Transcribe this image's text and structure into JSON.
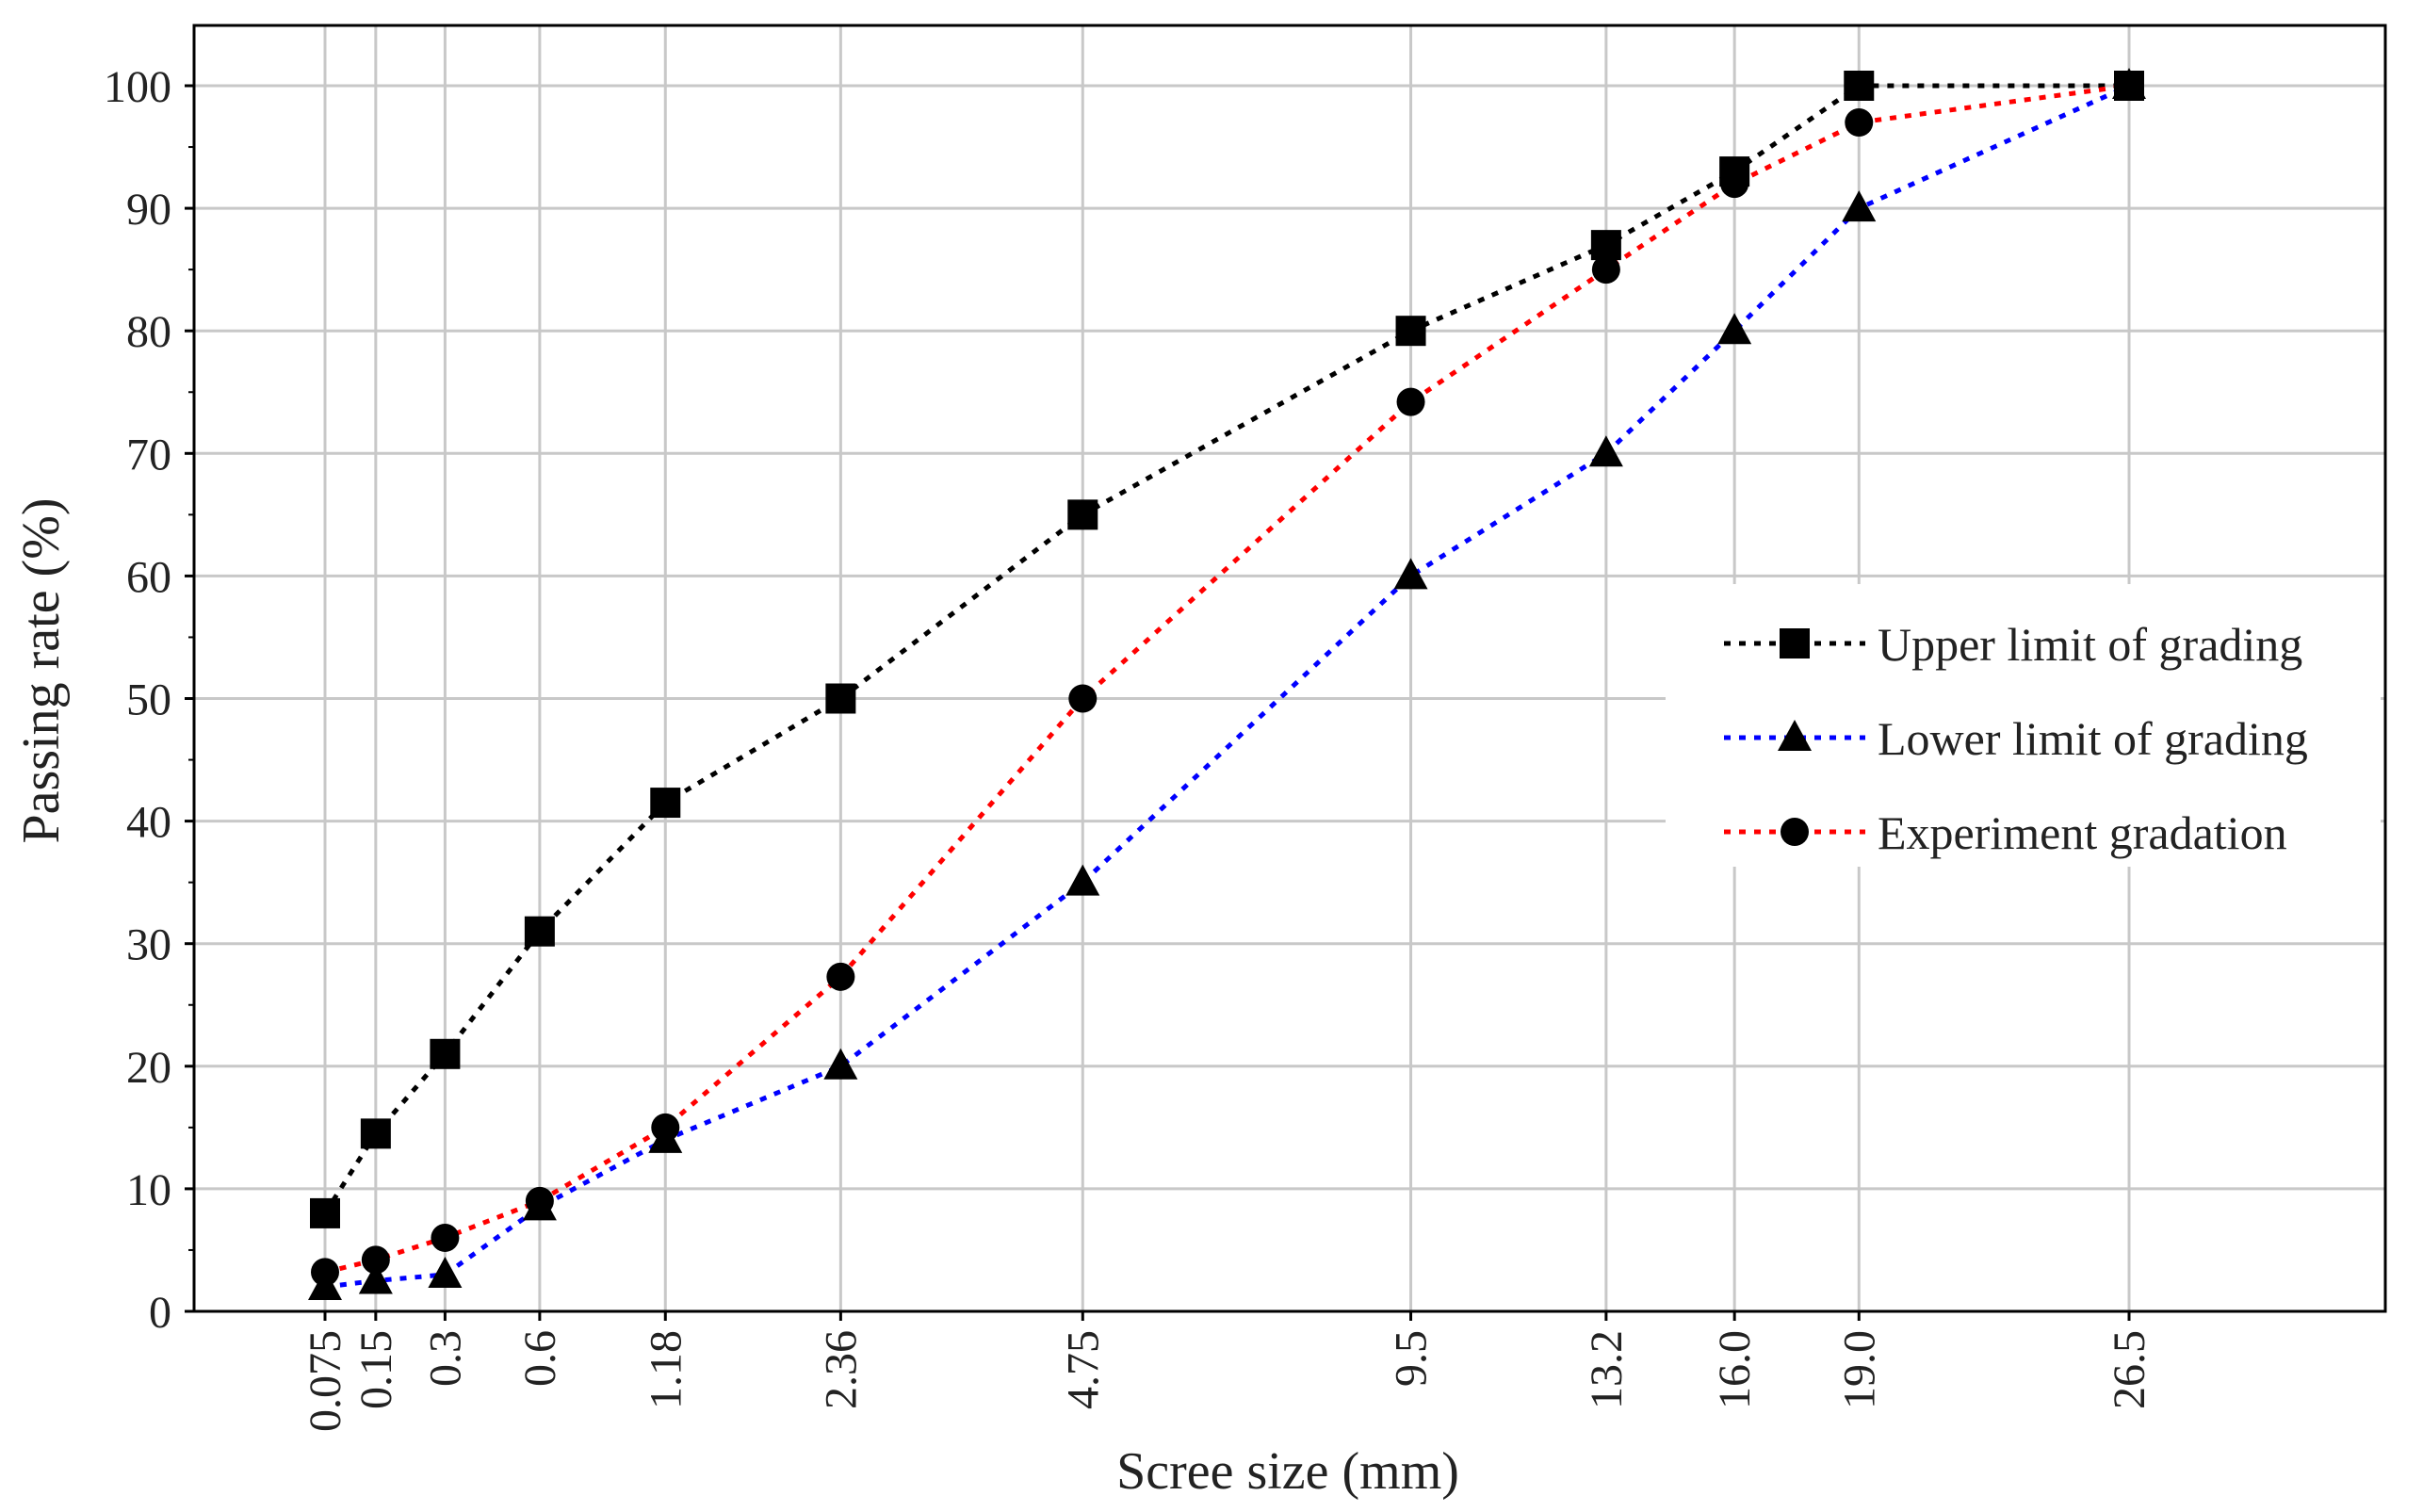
{
  "chart_data": {
    "type": "line",
    "title": "",
    "xlabel": "Scree size (mm)",
    "ylabel": "Passing rate (%)",
    "ylim": [
      0,
      100
    ],
    "yticks": [
      0,
      10,
      20,
      30,
      40,
      50,
      60,
      70,
      80,
      90,
      100
    ],
    "categories": [
      "0.075",
      "0.15",
      "0.3",
      "0.6",
      "1.18",
      "2.36",
      "4.75",
      "9.5",
      "13.2",
      "16.0",
      "19.0",
      "26.5"
    ],
    "x_scale": "power 0.45",
    "grid": true,
    "legend_position": "right",
    "series": [
      {
        "name": "Upper limit of grading",
        "color": "#000000",
        "marker": "square",
        "values": [
          8,
          14.5,
          21,
          31,
          41.5,
          50,
          65,
          80,
          87,
          93,
          100,
          100
        ]
      },
      {
        "name": "Lower limit of grading",
        "color": "#0000ff",
        "marker": "triangle",
        "values": [
          2,
          2.5,
          3,
          8.5,
          14,
          20,
          35,
          60,
          70,
          80,
          90,
          100
        ]
      },
      {
        "name": "Experiment gradation",
        "color": "#ff0000",
        "marker": "circle",
        "values": [
          3.2,
          4.2,
          6,
          9,
          15,
          27.3,
          50,
          74.2,
          85,
          92,
          97,
          100
        ]
      }
    ]
  }
}
